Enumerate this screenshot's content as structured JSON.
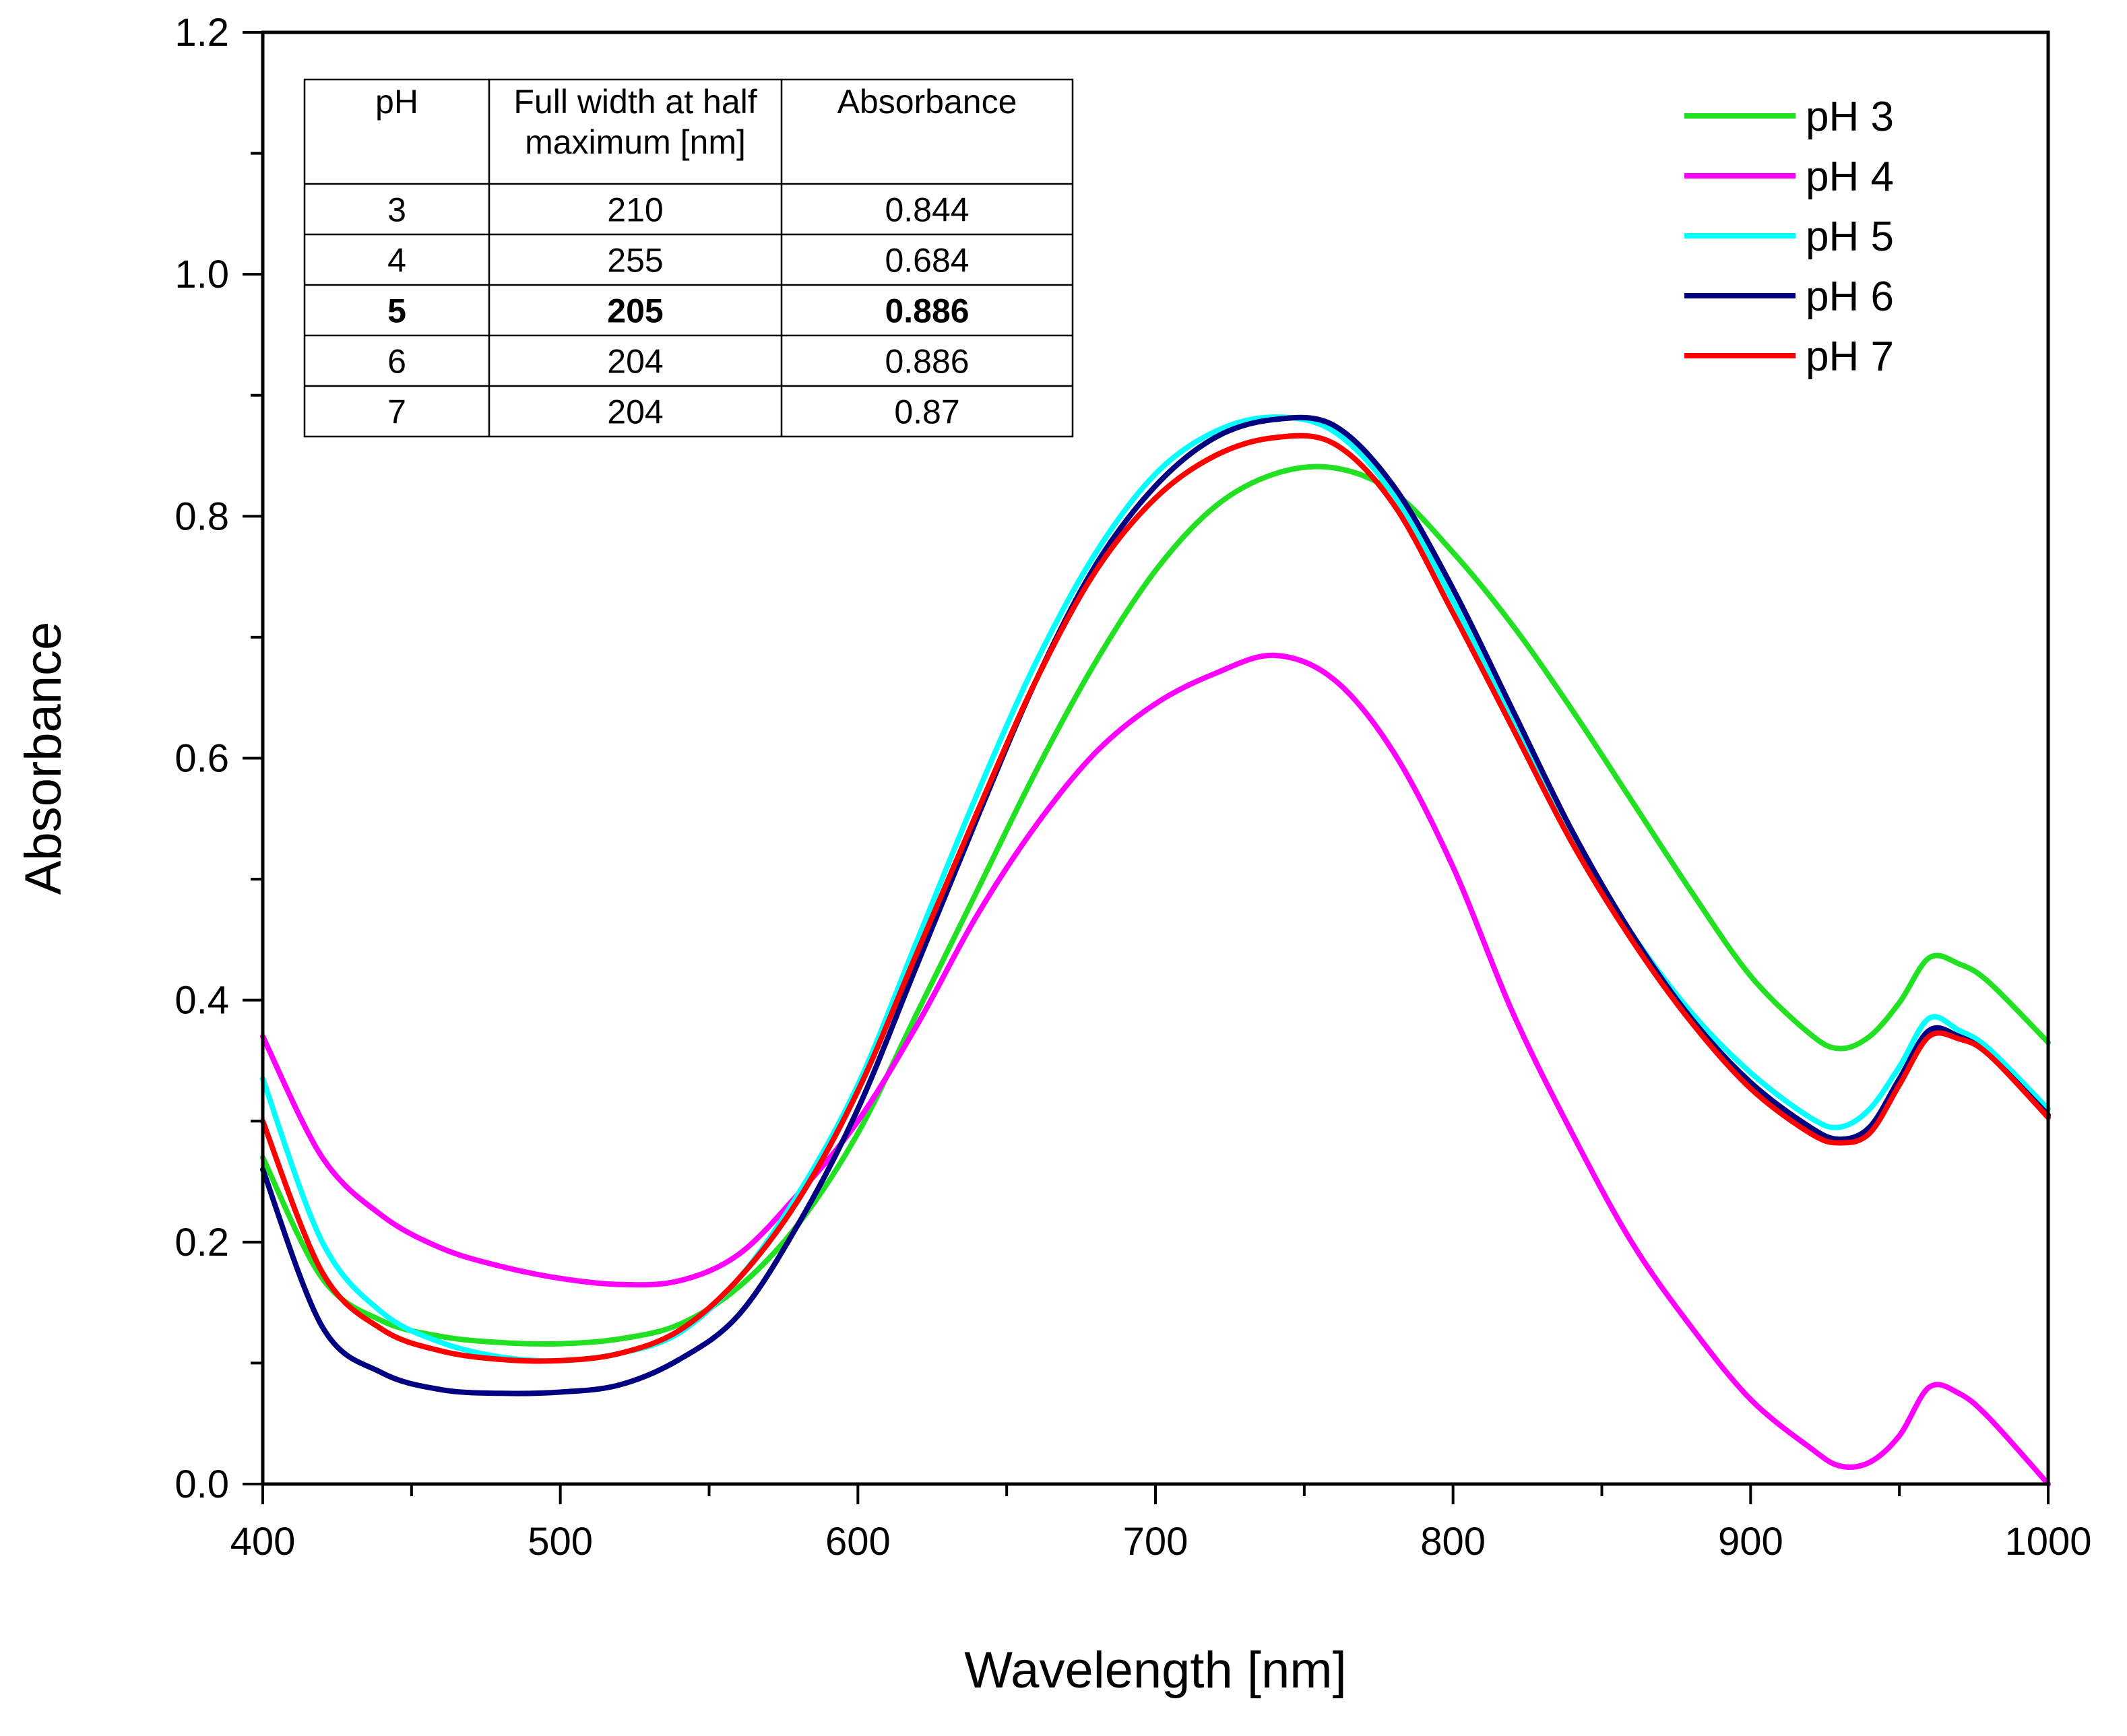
{
  "chart_data": {
    "type": "line",
    "title": "",
    "xlabel": "Wavelength [nm]",
    "ylabel": "Absorbance",
    "xlim": [
      400,
      1000
    ],
    "ylim": [
      0.0,
      1.2
    ],
    "grid": false,
    "x_ticks": [
      "400",
      "500",
      "600",
      "700",
      "800",
      "900",
      "1000"
    ],
    "y_ticks": [
      "0.0",
      "0.2",
      "0.4",
      "0.6",
      "0.8",
      "1.0",
      "1.2"
    ],
    "legend_position": "top-right",
    "x": [
      400,
      420,
      440,
      460,
      480,
      500,
      520,
      540,
      560,
      580,
      600,
      620,
      640,
      660,
      680,
      700,
      720,
      740,
      760,
      780,
      800,
      820,
      840,
      860,
      880,
      900,
      920,
      930,
      940,
      950,
      960,
      970,
      980,
      1000
    ],
    "series": [
      {
        "name": "pH 3",
        "color": "#22e022",
        "values": [
          0.27,
          0.17,
          0.135,
          0.122,
          0.117,
          0.116,
          0.12,
          0.132,
          0.163,
          0.215,
          0.29,
          0.39,
          0.49,
          0.59,
          0.68,
          0.755,
          0.808,
          0.835,
          0.84,
          0.82,
          0.77,
          0.71,
          0.64,
          0.565,
          0.49,
          0.42,
          0.372,
          0.36,
          0.37,
          0.398,
          0.435,
          0.43,
          0.415,
          0.365
        ]
      },
      {
        "name": "pH 4",
        "color": "#ff00ff",
        "values": [
          0.37,
          0.27,
          0.222,
          0.195,
          0.18,
          0.17,
          0.165,
          0.168,
          0.19,
          0.24,
          0.3,
          0.38,
          0.47,
          0.545,
          0.605,
          0.645,
          0.67,
          0.685,
          0.665,
          0.605,
          0.51,
          0.39,
          0.29,
          0.2,
          0.13,
          0.07,
          0.03,
          0.015,
          0.018,
          0.04,
          0.08,
          0.075,
          0.055,
          0.0
        ]
      },
      {
        "name": "pH 5",
        "color": "#00ffff",
        "values": [
          0.335,
          0.2,
          0.142,
          0.117,
          0.105,
          0.102,
          0.108,
          0.125,
          0.17,
          0.24,
          0.33,
          0.45,
          0.57,
          0.68,
          0.77,
          0.835,
          0.87,
          0.882,
          0.87,
          0.818,
          0.73,
          0.63,
          0.535,
          0.455,
          0.39,
          0.34,
          0.303,
          0.295,
          0.31,
          0.345,
          0.385,
          0.375,
          0.36,
          0.31
        ]
      },
      {
        "name": "pH 6",
        "color": "#000080",
        "values": [
          0.26,
          0.13,
          0.092,
          0.078,
          0.075,
          0.076,
          0.082,
          0.103,
          0.14,
          0.215,
          0.31,
          0.43,
          0.55,
          0.665,
          0.76,
          0.825,
          0.865,
          0.88,
          0.875,
          0.825,
          0.74,
          0.64,
          0.54,
          0.455,
          0.385,
          0.332,
          0.295,
          0.285,
          0.295,
          0.335,
          0.375,
          0.37,
          0.355,
          0.305
        ]
      },
      {
        "name": "pH 7",
        "color": "#ff0000",
        "values": [
          0.3,
          0.175,
          0.128,
          0.11,
          0.103,
          0.102,
          0.108,
          0.127,
          0.17,
          0.235,
          0.325,
          0.44,
          0.555,
          0.665,
          0.755,
          0.815,
          0.85,
          0.865,
          0.86,
          0.81,
          0.72,
          0.625,
          0.53,
          0.45,
          0.382,
          0.327,
          0.29,
          0.282,
          0.29,
          0.33,
          0.37,
          0.368,
          0.355,
          0.303
        ]
      }
    ],
    "inset_table": {
      "headers": [
        "pH",
        "Full width at half",
        "maximum [nm]",
        "Absorbance"
      ],
      "rows": [
        {
          "ph": "3",
          "fwhm": "210",
          "absorbance": "0.844",
          "bold": false
        },
        {
          "ph": "4",
          "fwhm": "255",
          "absorbance": "0.684",
          "bold": false
        },
        {
          "ph": "5",
          "fwhm": "205",
          "absorbance": "0.886",
          "bold": true
        },
        {
          "ph": "6",
          "fwhm": "204",
          "absorbance": "0.886",
          "bold": false
        },
        {
          "ph": "7",
          "fwhm": "204",
          "absorbance": "0.87",
          "bold": false
        }
      ]
    }
  }
}
